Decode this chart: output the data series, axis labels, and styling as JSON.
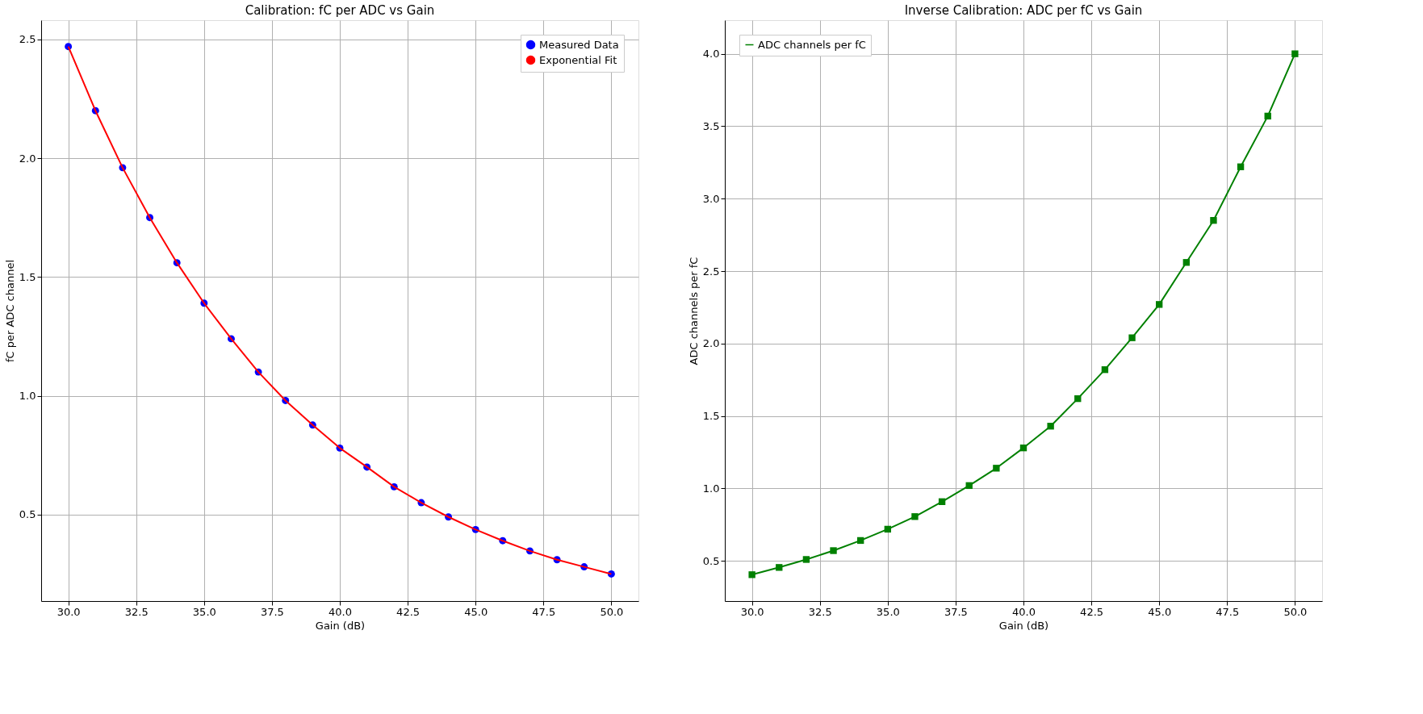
{
  "chart_data": [
    {
      "type": "scatter",
      "title": "Calibration: fC per ADC vs Gain",
      "xlabel": "Gain (dB)",
      "ylabel": "fC per ADC channel",
      "x": [
        30,
        31,
        32,
        33,
        34,
        35,
        36,
        37,
        38,
        39,
        40,
        41,
        42,
        43,
        44,
        45,
        46,
        47,
        48,
        49,
        50
      ],
      "series": [
        {
          "name": "Measured Data",
          "color": "#0000ff",
          "type": "scatter",
          "marker": "circle",
          "values": [
            2.47,
            2.2,
            1.96,
            1.75,
            1.56,
            1.39,
            1.24,
            1.1,
            0.98,
            0.877,
            0.78,
            0.7,
            0.617,
            0.55,
            0.49,
            0.437,
            0.39,
            0.347,
            0.31,
            0.28,
            0.25
          ]
        },
        {
          "name": "Exponential Fit",
          "color": "#ff0000",
          "type": "line",
          "marker": "none",
          "values": [
            2.47,
            2.2,
            1.96,
            1.75,
            1.56,
            1.39,
            1.24,
            1.1,
            0.98,
            0.877,
            0.78,
            0.7,
            0.617,
            0.55,
            0.49,
            0.437,
            0.39,
            0.347,
            0.31,
            0.28,
            0.25
          ]
        }
      ],
      "xlim": [
        29,
        51
      ],
      "ylim": [
        0.136,
        2.581
      ],
      "xticks": [
        {
          "value": 30,
          "label": "30.0"
        },
        {
          "value": 32.5,
          "label": "32.5"
        },
        {
          "value": 35,
          "label": "35.0"
        },
        {
          "value": 37.5,
          "label": "37.5"
        },
        {
          "value": 40,
          "label": "40.0"
        },
        {
          "value": 42.5,
          "label": "42.5"
        },
        {
          "value": 45,
          "label": "45.0"
        },
        {
          "value": 47.5,
          "label": "47.5"
        },
        {
          "value": 50,
          "label": "50.0"
        }
      ],
      "yticks": [
        0.5,
        {
          "value": 1,
          "label": "1.0"
        },
        1.5,
        {
          "value": 2,
          "label": "2.0"
        },
        2.5
      ],
      "grid": true,
      "legend": "top right"
    },
    {
      "type": "line",
      "title": "Inverse Calibration: ADC per fC vs Gain",
      "xlabel": "Gain (dB)",
      "ylabel": "ADC channels per fC",
      "x": [
        30,
        31,
        32,
        33,
        34,
        35,
        36,
        37,
        38,
        39,
        40,
        41,
        42,
        43,
        44,
        45,
        46,
        47,
        48,
        49,
        50
      ],
      "series": [
        {
          "name": "ADC channels per fC",
          "color": "#008000",
          "marker": "square",
          "values": [
            0.405,
            0.455,
            0.51,
            0.571,
            0.641,
            0.719,
            0.806,
            0.909,
            1.02,
            1.14,
            1.28,
            1.43,
            1.62,
            1.82,
            2.04,
            2.27,
            2.56,
            2.85,
            3.22,
            3.57,
            4.0
          ]
        }
      ],
      "xlim": [
        29,
        51
      ],
      "ylim": [
        0.223,
        4.232
      ],
      "xticks": [
        {
          "value": 30,
          "label": "30.0"
        },
        {
          "value": 32.5,
          "label": "32.5"
        },
        {
          "value": 35,
          "label": "35.0"
        },
        {
          "value": 37.5,
          "label": "37.5"
        },
        {
          "value": 40,
          "label": "40.0"
        },
        {
          "value": 42.5,
          "label": "42.5"
        },
        {
          "value": 45,
          "label": "45.0"
        },
        {
          "value": 47.5,
          "label": "47.5"
        },
        {
          "value": 50,
          "label": "50.0"
        }
      ],
      "yticks": [
        0.5,
        {
          "value": 1,
          "label": "1.0"
        },
        1.5,
        {
          "value": 2,
          "label": "2.0"
        },
        2.5,
        {
          "value": 3,
          "label": "3.0"
        },
        3.5,
        {
          "value": 4,
          "label": "4.0"
        }
      ],
      "grid": true,
      "legend": "top left"
    }
  ]
}
